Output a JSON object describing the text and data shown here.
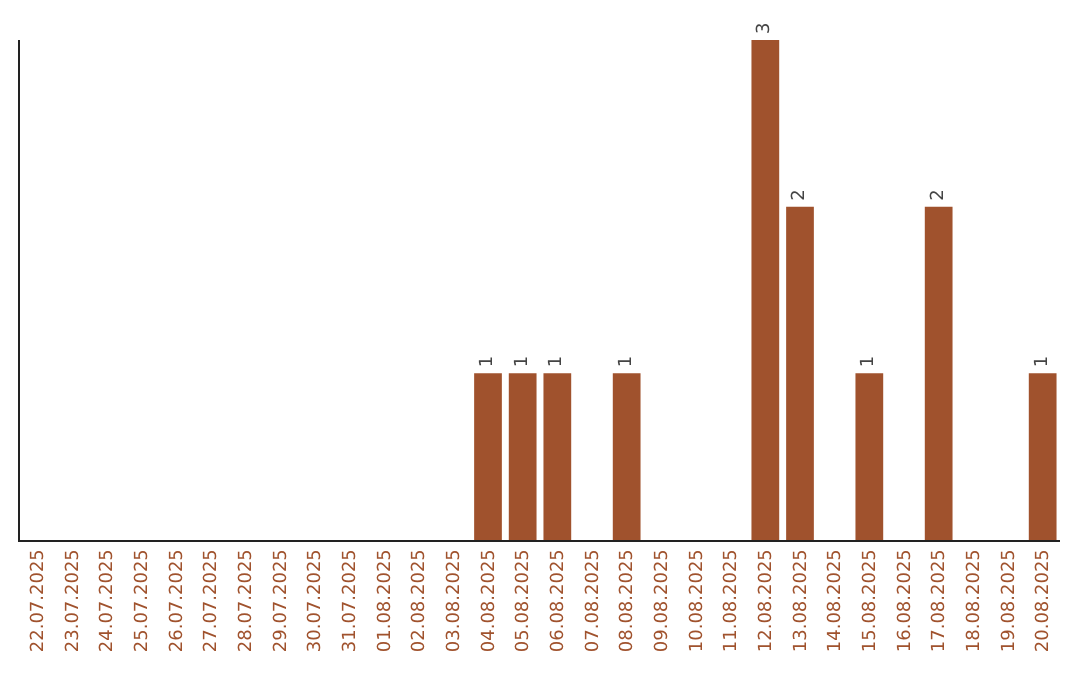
{
  "chart_data": {
    "type": "bar",
    "categories": [
      "22.07.2025",
      "23.07.2025",
      "24.07.2025",
      "25.07.2025",
      "26.07.2025",
      "27.07.2025",
      "28.07.2025",
      "29.07.2025",
      "30.07.2025",
      "31.07.2025",
      "01.08.2025",
      "02.08.2025",
      "03.08.2025",
      "04.08.2025",
      "05.08.2025",
      "06.08.2025",
      "07.08.2025",
      "08.08.2025",
      "09.08.2025",
      "10.08.2025",
      "11.08.2025",
      "12.08.2025",
      "13.08.2025",
      "14.08.2025",
      "15.08.2025",
      "16.08.2025",
      "17.08.2025",
      "18.08.2025",
      "19.08.2025",
      "20.08.2025"
    ],
    "values": [
      null,
      null,
      null,
      null,
      null,
      null,
      null,
      null,
      null,
      null,
      null,
      null,
      null,
      1,
      1,
      1,
      null,
      1,
      null,
      null,
      null,
      3,
      2,
      null,
      1,
      null,
      2,
      null,
      null,
      1
    ],
    "value_labels": [
      null,
      null,
      null,
      null,
      null,
      null,
      null,
      null,
      null,
      null,
      null,
      null,
      null,
      "1",
      "1",
      "1",
      null,
      "1",
      null,
      null,
      null,
      "3",
      "2",
      null,
      "1",
      null,
      "2",
      null,
      null,
      "1"
    ],
    "color": "#a0522d",
    "tick_labels": "x"
  }
}
